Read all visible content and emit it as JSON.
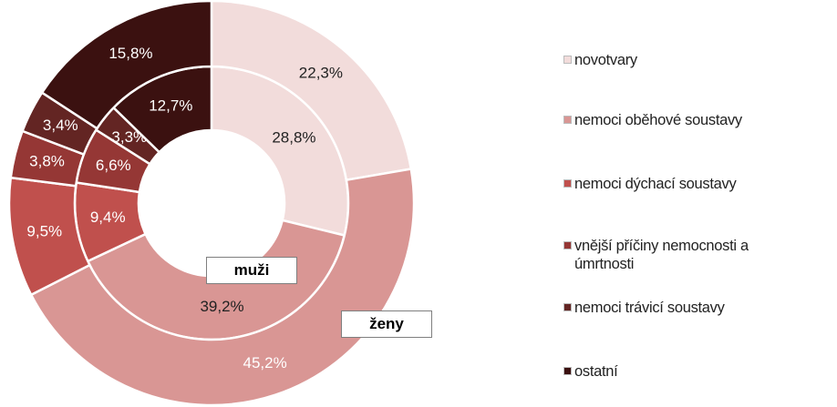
{
  "chart_data": {
    "type": "donut",
    "categories": [
      "novotvary",
      "nemoci oběhové soustavy",
      "nemoci dýchací soustavy",
      "vnější příčiny nemocnosti a úmrtnosti",
      "nemoci trávicí soustavy",
      "ostatní"
    ],
    "colors": [
      "#f2dcdb",
      "#d99694",
      "#c0504d",
      "#953735",
      "#632523",
      "#3b1110"
    ],
    "series": [
      {
        "name": "muži",
        "ring": "inner",
        "values": [
          28.8,
          39.2,
          9.4,
          6.6,
          3.3,
          12.7
        ],
        "value_labels": [
          "28,8%",
          "39,2%",
          "9,4%",
          "6,6%",
          "3,3%",
          "12,7%"
        ]
      },
      {
        "name": "ženy",
        "ring": "outer",
        "values": [
          22.3,
          45.2,
          9.5,
          3.8,
          3.4,
          15.8
        ],
        "value_labels": [
          "22,3%",
          "45,2%",
          "9,5%",
          "3,8%",
          "3,4%",
          "15,8%"
        ]
      }
    ],
    "legend": "right"
  }
}
